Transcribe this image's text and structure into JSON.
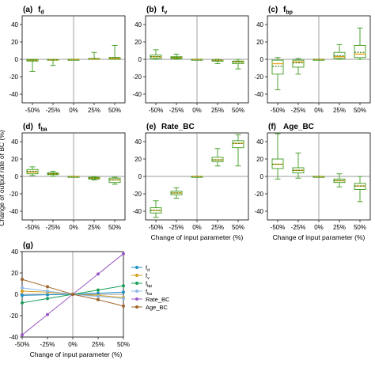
{
  "colors": {
    "box_edge": "#3a9a1a",
    "median": "#e8a317",
    "mean": "#2a7a10",
    "zero_line": "#7a7a7a",
    "axis": "#000000"
  },
  "x_categories": [
    "-50%",
    "-25%",
    "0%",
    "25%",
    "50%"
  ],
  "y_ticks": [
    "40",
    "20",
    "0",
    "-20",
    "-40"
  ],
  "y_axis_label_partial": "Change of output rate of BC (%)",
  "shared_xlabel": "Change of input parameter (%)",
  "chart_data": [
    {
      "id": "a",
      "type": "box",
      "label": "(a)",
      "title": "f",
      "title_sub": "d",
      "categories": [
        "-50%",
        "-25%",
        "0%",
        "25%",
        "50%"
      ],
      "ylim": [
        -50,
        50
      ],
      "boxes": [
        {
          "whislo": -14,
          "q1": -2,
          "med": -1,
          "q3": 0,
          "whishi": 0,
          "mean": -1
        },
        {
          "whislo": -7,
          "q1": -1,
          "med": -0.5,
          "q3": 0,
          "whishi": 0,
          "mean": -0.5
        },
        {
          "whislo": 0,
          "q1": 0,
          "med": 0,
          "q3": 0,
          "whishi": 0,
          "mean": 0
        },
        {
          "whislo": 0,
          "q1": 0,
          "med": 0.5,
          "q3": 1,
          "whishi": 8,
          "mean": 1
        },
        {
          "whislo": 0,
          "q1": 0,
          "med": 1,
          "q3": 2,
          "whishi": 16,
          "mean": 2
        }
      ]
    },
    {
      "id": "b",
      "type": "box",
      "label": "(b)",
      "title": "f",
      "title_sub": "v",
      "categories": [
        "-50%",
        "-25%",
        "0%",
        "25%",
        "50%"
      ],
      "ylim": [
        -50,
        50
      ],
      "boxes": [
        {
          "whislo": 0,
          "q1": 1,
          "med": 3,
          "q3": 5,
          "whishi": 11,
          "mean": 3
        },
        {
          "whislo": 0,
          "q1": 1,
          "med": 2,
          "q3": 3,
          "whishi": 6,
          "mean": 2
        },
        {
          "whislo": 0,
          "q1": 0,
          "med": 0,
          "q3": 0,
          "whishi": 0,
          "mean": 0
        },
        {
          "whislo": -5,
          "q1": -2,
          "med": -1,
          "q3": -1,
          "whishi": 0,
          "mean": -1
        },
        {
          "whislo": -11,
          "q1": -5,
          "med": -3,
          "q3": -2,
          "whishi": 0,
          "mean": -3
        }
      ]
    },
    {
      "id": "c",
      "type": "box",
      "label": "(c)",
      "title": "f",
      "title_sub": "bp",
      "categories": [
        "-50%",
        "-25%",
        "0%",
        "25%",
        "50%"
      ],
      "ylim": [
        -50,
        50
      ],
      "boxes": [
        {
          "whislo": -35,
          "q1": -17,
          "med": -5,
          "q3": -1,
          "whishi": 2,
          "mean": -8
        },
        {
          "whislo": -17,
          "q1": -9,
          "med": -3,
          "q3": -1,
          "whishi": 1,
          "mean": -4
        },
        {
          "whislo": 0,
          "q1": 0,
          "med": 0,
          "q3": 0,
          "whishi": 0,
          "mean": 0
        },
        {
          "whislo": 0,
          "q1": 1,
          "med": 3,
          "q3": 8,
          "whishi": 17,
          "mean": 4
        },
        {
          "whislo": 0,
          "q1": 2,
          "med": 6,
          "q3": 16,
          "whishi": 36,
          "mean": 8
        }
      ]
    },
    {
      "id": "d",
      "type": "box",
      "label": "(d)",
      "title": "f",
      "title_sub": "ba",
      "categories": [
        "-50%",
        "-25%",
        "0%",
        "25%",
        "50%"
      ],
      "ylim": [
        -50,
        50
      ],
      "boxes": [
        {
          "whislo": 1,
          "q1": 3,
          "med": 5,
          "q3": 8,
          "whishi": 11,
          "mean": 6
        },
        {
          "whislo": 0,
          "q1": 2,
          "med": 3,
          "q3": 4,
          "whishi": 6,
          "mean": 3
        },
        {
          "whislo": 0,
          "q1": 0,
          "med": 0,
          "q3": 0,
          "whishi": 0,
          "mean": 0
        },
        {
          "whislo": -4,
          "q1": -3,
          "med": -2,
          "q3": -1,
          "whishi": 0,
          "mean": -2
        },
        {
          "whislo": -9,
          "q1": -7,
          "med": -4,
          "q3": -2,
          "whishi": -1,
          "mean": -4
        }
      ]
    },
    {
      "id": "e",
      "type": "box",
      "label": "(e)",
      "title": "Rate_BC",
      "categories": [
        "-50%",
        "-25%",
        "0%",
        "25%",
        "50%"
      ],
      "ylim": [
        -50,
        50
      ],
      "xlabel": "Change of input parameter (%)",
      "boxes": [
        {
          "whislo": -47,
          "q1": -42,
          "med": -39,
          "q3": -36,
          "whishi": -28,
          "mean": -39
        },
        {
          "whislo": -25,
          "q1": -21,
          "med": -19,
          "q3": -17,
          "whishi": -13,
          "mean": -19
        },
        {
          "whislo": 0,
          "q1": 0,
          "med": 0,
          "q3": 0,
          "whishi": 0,
          "mean": 0
        },
        {
          "whislo": 12,
          "q1": 17,
          "med": 19,
          "q3": 22,
          "whishi": 32,
          "mean": 19
        },
        {
          "whislo": 12,
          "q1": 33,
          "med": 38,
          "q3": 41,
          "whishi": 48,
          "mean": 38
        }
      ]
    },
    {
      "id": "f",
      "type": "box",
      "label": "(f)",
      "title": "Age_BC",
      "categories": [
        "-50%",
        "-25%",
        "0%",
        "25%",
        "50%"
      ],
      "ylim": [
        -50,
        50
      ],
      "xlabel": "Change of input parameter (%)",
      "boxes": [
        {
          "whislo": -3,
          "q1": 9,
          "med": 14,
          "q3": 20,
          "whishi": 49,
          "mean": 14
        },
        {
          "whislo": -2,
          "q1": 4,
          "med": 7,
          "q3": 10,
          "whishi": 27,
          "mean": 7
        },
        {
          "whislo": 0,
          "q1": 0,
          "med": 0,
          "q3": 0,
          "whishi": 0,
          "mean": 0
        },
        {
          "whislo": -12,
          "q1": -7,
          "med": -5,
          "q3": -3,
          "whishi": 3,
          "mean": -5
        },
        {
          "whislo": -29,
          "q1": -15,
          "med": -11,
          "q3": -8,
          "whishi": 0,
          "mean": -11
        }
      ]
    },
    {
      "id": "g",
      "type": "line",
      "label": "(g)",
      "x": [
        -50,
        -25,
        0,
        25,
        50
      ],
      "x_tick_labels": [
        "-50%",
        "-25%",
        "0%",
        "25%",
        "50%"
      ],
      "ylim": [
        -40,
        40
      ],
      "y_ticks": [
        "40",
        "20",
        "0",
        "-20",
        "-40"
      ],
      "xlabel": "Change of input parameter (%)",
      "series": [
        {
          "name": "f",
          "name_sub": "d",
          "color": "#1e90c8",
          "values": [
            -1,
            -0.5,
            0,
            1,
            2
          ]
        },
        {
          "name": "f",
          "name_sub": "v",
          "color": "#d4a017",
          "values": [
            3,
            2,
            0,
            -1,
            -3
          ]
        },
        {
          "name": "f",
          "name_sub": "bp",
          "color": "#18a058",
          "values": [
            -8,
            -4,
            0,
            4,
            8
          ]
        },
        {
          "name": "f",
          "name_sub": "ba",
          "color": "#8db8e8",
          "values": [
            6,
            3,
            0,
            -2,
            -4
          ]
        },
        {
          "name": "Rate_BC",
          "color": "#9b59c6",
          "values": [
            -38,
            -19,
            0,
            19,
            38
          ]
        },
        {
          "name": "Age_BC",
          "color": "#a0642a",
          "values": [
            14,
            7,
            0,
            -5,
            -11
          ]
        }
      ]
    }
  ]
}
